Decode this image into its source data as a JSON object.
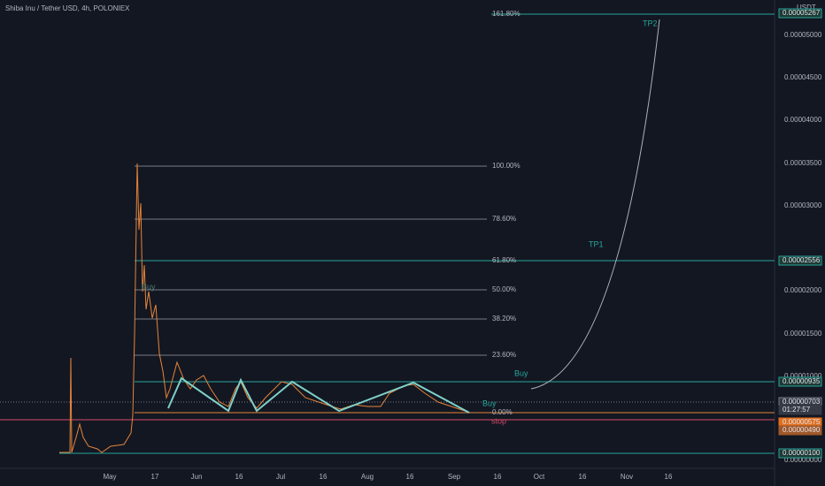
{
  "header": {
    "title": "Shiba Inu / Tether USD, 4h, POLONIEX"
  },
  "price_axis": {
    "unit": "USDT",
    "labels": [
      "0.00005000",
      "0.00004500",
      "0.00004000",
      "0.00003500",
      "0.00003000",
      "0.00002000",
      "0.00001500",
      "0.00001000",
      "0.00000000"
    ],
    "highlight_labels": [
      "0.00005267",
      "0.00002556",
      "0.00000935",
      "0.00000703",
      "01:27:57",
      "0.00000575",
      "0.00000490",
      "0.00000100"
    ]
  },
  "time_axis": {
    "labels": [
      "May",
      "17",
      "Jun",
      "16",
      "Jul",
      "16",
      "Aug",
      "16",
      "Sep",
      "16",
      "Oct",
      "16",
      "Nov",
      "16"
    ]
  },
  "fib_levels": [
    "161.80%",
    "100.00%",
    "78.60%",
    "61.80%",
    "50.00%",
    "38.20%",
    "23.60%",
    "0.00%"
  ],
  "annotations": [
    "TP2",
    "TP1",
    "Buy",
    "Buy",
    "stop",
    "Buy"
  ]
}
